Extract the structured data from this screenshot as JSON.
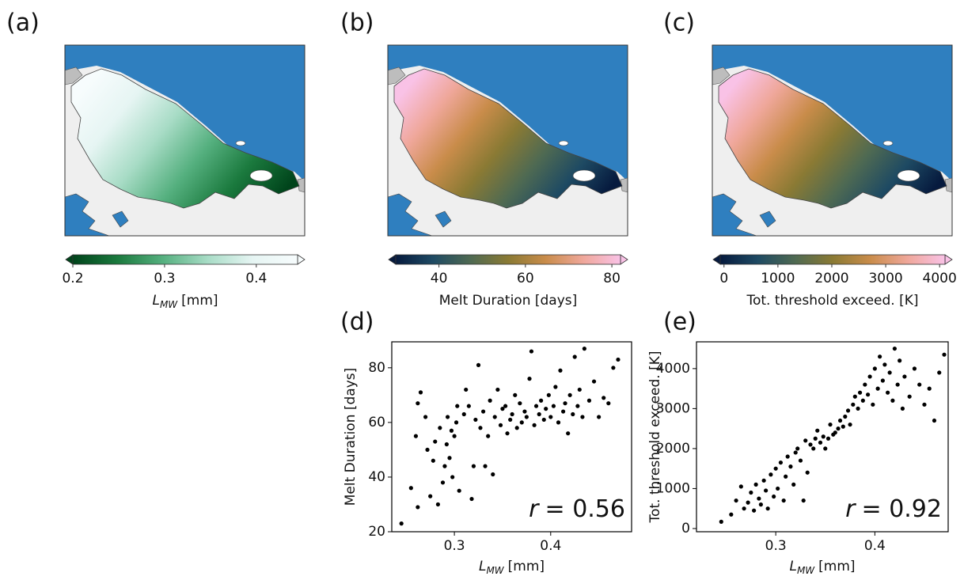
{
  "chart_data": [
    {
      "type": "map",
      "panel_label": "(a)",
      "colorbar": {
        "colormap": [
          "#00441b",
          "#1b7a3e",
          "#55b07f",
          "#a8dcc6",
          "#e6f5f3",
          "#f7fcfd"
        ],
        "xlim": [
          0.2,
          0.445
        ],
        "xticks": [
          0.2,
          0.3,
          0.4
        ],
        "label": {
          "symbol": "L",
          "subscript": "MW",
          "unit": "[mm]"
        }
      }
    },
    {
      "type": "map",
      "panel_label": "(b)",
      "colorbar": {
        "colormap": [
          "#061a3e",
          "#1e4a63",
          "#4f6a52",
          "#8a7a34",
          "#c98c4a",
          "#efa79a",
          "#f9c2e6"
        ],
        "xlim": [
          30,
          82
        ],
        "xticks": [
          40,
          60,
          80
        ],
        "label": "Melt Duration [days]"
      }
    },
    {
      "type": "map",
      "panel_label": "(c)",
      "colorbar": {
        "colormap": [
          "#061a3e",
          "#1e4a63",
          "#4f6a52",
          "#8a7a34",
          "#c98c4a",
          "#efa79a",
          "#f9c2e6"
        ],
        "xlim": [
          -70,
          4100
        ],
        "xticks": [
          0,
          1000,
          2000,
          3000,
          4000
        ],
        "label": "Tot. threshold exceed. [K]"
      }
    },
    {
      "type": "scatter",
      "panel_label": "(d)",
      "color": "#000000",
      "x": [
        0.245,
        0.255,
        0.262,
        0.26,
        0.262,
        0.265,
        0.27,
        0.272,
        0.275,
        0.278,
        0.28,
        0.283,
        0.285,
        0.288,
        0.29,
        0.292,
        0.293,
        0.295,
        0.297,
        0.298,
        0.3,
        0.302,
        0.303,
        0.305,
        0.31,
        0.312,
        0.315,
        0.318,
        0.32,
        0.322,
        0.325,
        0.327,
        0.33,
        0.332,
        0.335,
        0.337,
        0.34,
        0.342,
        0.345,
        0.348,
        0.35,
        0.353,
        0.355,
        0.358,
        0.36,
        0.363,
        0.365,
        0.368,
        0.37,
        0.373,
        0.375,
        0.378,
        0.38,
        0.383,
        0.385,
        0.388,
        0.39,
        0.393,
        0.395,
        0.398,
        0.4,
        0.403,
        0.405,
        0.408,
        0.41,
        0.413,
        0.415,
        0.418,
        0.42,
        0.423,
        0.425,
        0.428,
        0.43,
        0.433,
        0.435,
        0.44,
        0.445,
        0.45,
        0.455,
        0.46,
        0.465,
        0.47
      ],
      "y": [
        23,
        36,
        29,
        55,
        67,
        71,
        62,
        50,
        33,
        46,
        53,
        30,
        58,
        38,
        44,
        52,
        62,
        47,
        57,
        40,
        55,
        60,
        66,
        35,
        63,
        72,
        66,
        32,
        44,
        61,
        81,
        58,
        64,
        44,
        55,
        68,
        41,
        62,
        72,
        59,
        65,
        66,
        56,
        61,
        63,
        70,
        58,
        67,
        60,
        64,
        62,
        76,
        86,
        59,
        66,
        63,
        68,
        61,
        65,
        70,
        62,
        66,
        73,
        60,
        79,
        64,
        67,
        56,
        70,
        63,
        84,
        66,
        72,
        62,
        87,
        68,
        75,
        62,
        69,
        67,
        80,
        83
      ],
      "xlim": [
        0.235,
        0.484
      ],
      "ylim": [
        20,
        89.5
      ],
      "xticks": [
        0.3,
        0.4
      ],
      "yticks": [
        20,
        40,
        60,
        80
      ],
      "xlabel": {
        "symbol": "L",
        "subscript": "MW",
        "unit": "[mm]"
      },
      "ylabel": "Melt Duration [days]",
      "annotation": {
        "symbol": "r",
        "text": "= 0.56"
      }
    },
    {
      "type": "scatter",
      "panel_label": "(e)",
      "color": "#000000",
      "x": [
        0.245,
        0.255,
        0.26,
        0.265,
        0.268,
        0.272,
        0.275,
        0.278,
        0.28,
        0.283,
        0.285,
        0.288,
        0.29,
        0.292,
        0.295,
        0.298,
        0.3,
        0.302,
        0.305,
        0.308,
        0.31,
        0.312,
        0.315,
        0.318,
        0.32,
        0.322,
        0.325,
        0.328,
        0.33,
        0.332,
        0.335,
        0.338,
        0.34,
        0.342,
        0.345,
        0.348,
        0.35,
        0.353,
        0.355,
        0.358,
        0.36,
        0.363,
        0.365,
        0.368,
        0.37,
        0.373,
        0.375,
        0.378,
        0.38,
        0.383,
        0.385,
        0.388,
        0.39,
        0.393,
        0.395,
        0.398,
        0.4,
        0.403,
        0.405,
        0.408,
        0.41,
        0.413,
        0.415,
        0.418,
        0.42,
        0.423,
        0.425,
        0.428,
        0.43,
        0.435,
        0.44,
        0.445,
        0.45,
        0.455,
        0.46,
        0.465,
        0.47
      ],
      "y": [
        170,
        350,
        700,
        1050,
        500,
        650,
        900,
        450,
        1100,
        750,
        600,
        1200,
        950,
        500,
        1350,
        800,
        1500,
        1000,
        1650,
        700,
        1300,
        1800,
        1550,
        1100,
        1900,
        2000,
        1700,
        700,
        2200,
        1400,
        2100,
        2000,
        2250,
        2450,
        2150,
        2300,
        2000,
        2250,
        2600,
        2350,
        2400,
        2500,
        2700,
        2550,
        2800,
        2950,
        2600,
        3100,
        3300,
        3000,
        3400,
        3200,
        3600,
        3350,
        3800,
        3100,
        4000,
        3500,
        4300,
        3700,
        4100,
        3400,
        3900,
        3200,
        4500,
        3600,
        4200,
        3000,
        3800,
        3300,
        4000,
        3600,
        3100,
        3500,
        2700,
        3900,
        4350
      ],
      "xlim": [
        0.22,
        0.474
      ],
      "ylim": [
        -80,
        4670
      ],
      "xticks": [
        0.3,
        0.4
      ],
      "yticks": [
        0,
        1000,
        2000,
        3000,
        4000
      ],
      "xlabel": {
        "symbol": "L",
        "subscript": "MW",
        "unit": "[mm]"
      },
      "ylabel": "Tot. threshold exceed. [K]",
      "annotation": {
        "symbol": "r",
        "text": "= 0.92"
      }
    }
  ]
}
